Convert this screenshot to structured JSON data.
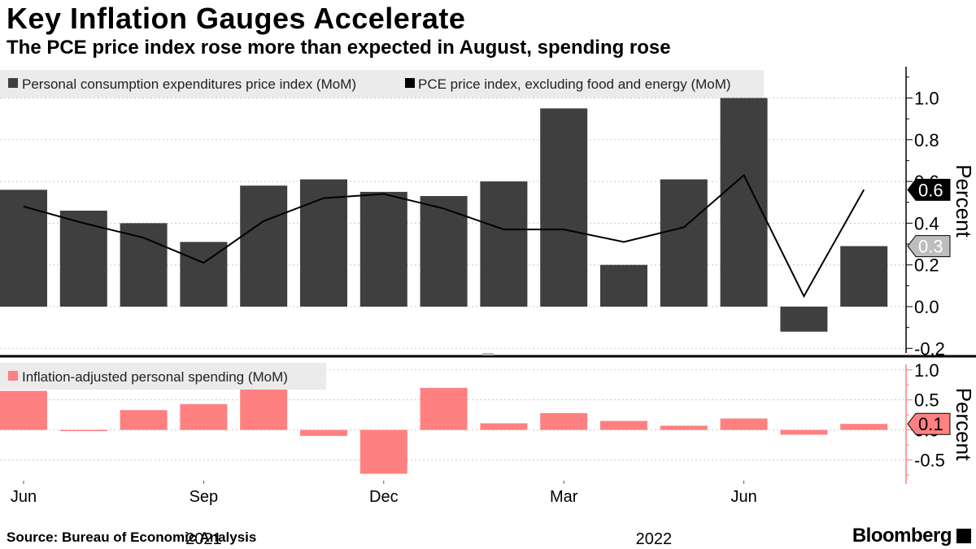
{
  "title": "Key Inflation Gauges Accelerate",
  "subtitle": "The PCE price index rose more than expected in August, spending rose",
  "source": "Source: Bureau of Economic Analysis",
  "brand": "Bloomberg",
  "colors": {
    "bar_dark": "#3f3f3f",
    "bar_pink": "#ff8080",
    "line": "#000000",
    "legend_bg": "#ebebeb",
    "grid": "#c8c8c8"
  },
  "chart_data": [
    {
      "type": "bar+line",
      "panel": "top",
      "categories": [
        "Jun 2021",
        "Jul 2021",
        "Aug 2021",
        "Sep 2021",
        "Oct 2021",
        "Nov 2021",
        "Dec 2021",
        "Jan 2022",
        "Feb 2022",
        "Mar 2022",
        "Apr 2022",
        "May 2022",
        "Jun 2022",
        "Jul 2022",
        "Aug 2022"
      ],
      "series": [
        {
          "name": "Personal consumption expenditures price index (MoM)",
          "kind": "bar",
          "values": [
            0.56,
            0.46,
            0.4,
            0.31,
            0.58,
            0.61,
            0.55,
            0.53,
            0.6,
            0.95,
            0.2,
            0.61,
            1.0,
            -0.12,
            0.29
          ]
        },
        {
          "name": "PCE price index, excluding food and energy (MoM)",
          "kind": "line",
          "values": [
            0.48,
            0.4,
            0.33,
            0.21,
            0.41,
            0.52,
            0.54,
            0.47,
            0.37,
            0.37,
            0.31,
            0.38,
            0.63,
            0.05,
            0.56
          ]
        }
      ],
      "ylabel": "Percent",
      "ylim": [
        -0.23,
        1.15
      ],
      "yticks": [
        -0.2,
        0.0,
        0.2,
        0.4,
        0.6,
        0.8,
        1.0
      ],
      "ytick_labels": [
        "-0.2",
        "0.0",
        "0.2",
        "0.4",
        "0.6",
        "0.8",
        "1.0"
      ],
      "last_value_labels": [
        {
          "label": "0.6",
          "value": 0.56,
          "series": "line"
        },
        {
          "label": "0.3",
          "value": 0.29,
          "series": "bar"
        }
      ],
      "grid": true,
      "legend": "top-left"
    },
    {
      "type": "bar",
      "panel": "bottom",
      "series": [
        {
          "name": "Inflation-adjusted personal spending (MoM)",
          "values": [
            0.65,
            -0.02,
            0.33,
            0.43,
            0.68,
            -0.1,
            -0.73,
            0.7,
            0.11,
            0.28,
            0.15,
            0.07,
            0.19,
            -0.08,
            0.1
          ]
        }
      ],
      "ylabel": "Percent",
      "ylim": [
        -0.9,
        1.2
      ],
      "yticks": [
        -0.5,
        0.0,
        0.5,
        1.0
      ],
      "ytick_labels": [
        "-0.5",
        "0.0",
        "0.5",
        "1.0"
      ],
      "last_value_labels": [
        {
          "label": "0.1",
          "value": 0.1
        }
      ],
      "grid": true,
      "legend": "top-left"
    }
  ],
  "x_axis": {
    "tick_labels": [
      {
        "index": 0,
        "label": "Jun"
      },
      {
        "index": 3,
        "label": "Sep"
      },
      {
        "index": 6,
        "label": "Dec"
      },
      {
        "index": 9,
        "label": "Mar"
      },
      {
        "index": 12,
        "label": "Jun"
      }
    ],
    "year_labels": [
      {
        "label": "2021",
        "center": 3
      },
      {
        "label": "2022",
        "center": 10.5
      }
    ]
  }
}
